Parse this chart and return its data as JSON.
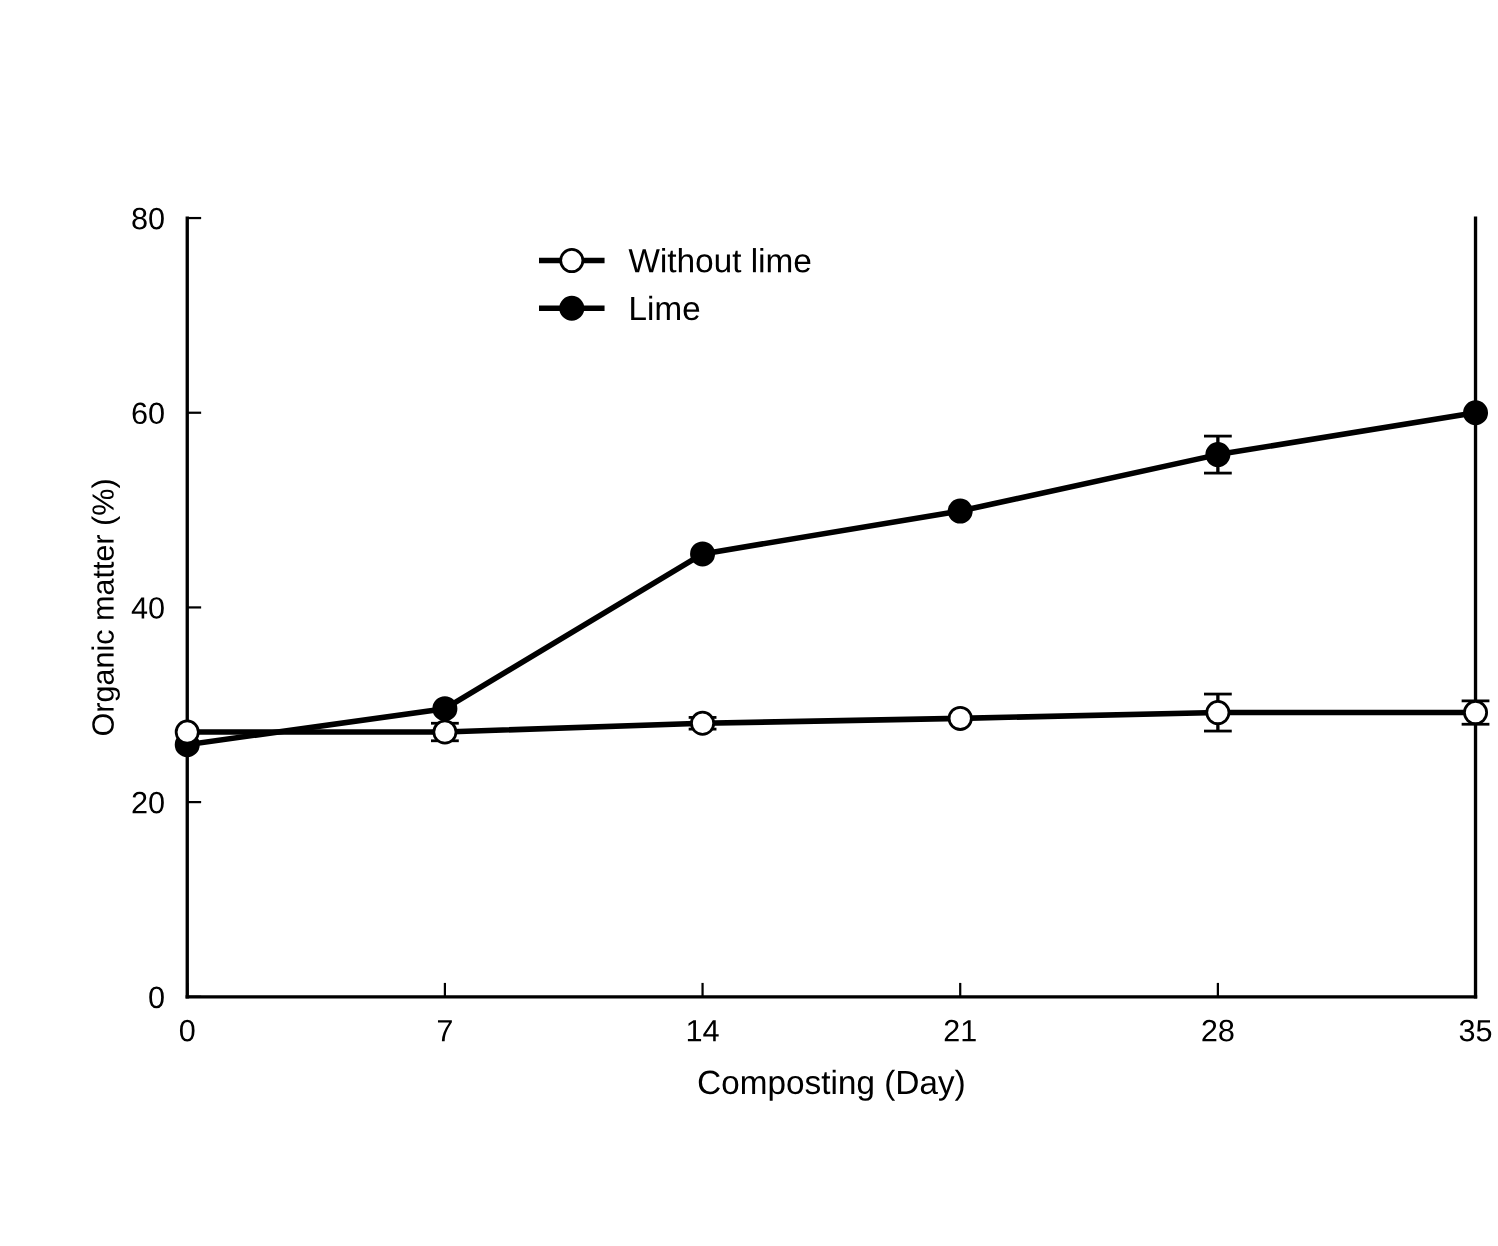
{
  "chart_data": {
    "type": "line",
    "xlabel": "Composting (Day)",
    "ylabel": "Organic matter (%)",
    "x": [
      0,
      7,
      14,
      21,
      28,
      35
    ],
    "series": [
      {
        "name": "Without lime",
        "color": "#000000",
        "marker": "circle",
        "values": [
          27.2,
          27.2,
          28.1,
          28.6,
          29.2,
          29.2
        ],
        "errors": [
          null,
          0.9,
          0.6,
          null,
          1.9,
          1.2
        ]
      },
      {
        "name": "Lime",
        "color": "#000000",
        "marker": "circle",
        "values": [
          25.9,
          29.6,
          45.5,
          49.9,
          55.7,
          60
        ],
        "errors": [
          null,
          null,
          null,
          null,
          1.9,
          null
        ]
      }
    ],
    "xlim": [
      0,
      35
    ],
    "xticks": [
      0,
      7,
      14,
      21,
      28,
      35
    ],
    "ylim": [
      0,
      80
    ],
    "yticks": [
      0,
      20,
      40,
      60,
      80
    ],
    "grid": false,
    "legend": "top"
  }
}
